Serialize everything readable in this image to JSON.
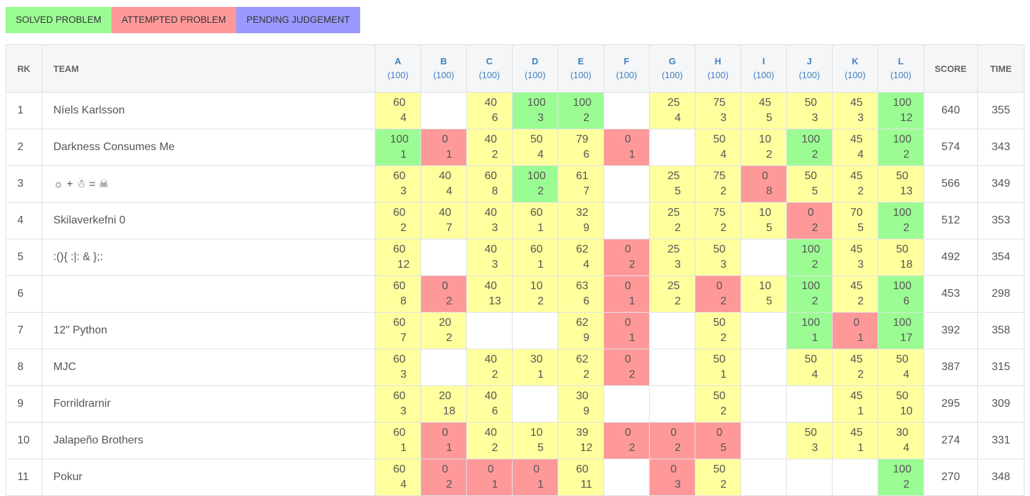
{
  "legend": {
    "solved": "SOLVED PROBLEM",
    "attempted": "ATTEMPTED PROBLEM",
    "pending": "PENDING JUDGEMENT"
  },
  "colors": {
    "solved": "#9cfc94",
    "attempted": "#ff9999",
    "partial": "#ffff9e",
    "pending": "#9999ff",
    "header_bg": "#f5f6f7",
    "problem_link": "#3d7fc0"
  },
  "header": {
    "rank": "RK",
    "team": "TEAM",
    "score": "SCORE",
    "time": "TIME",
    "problems": [
      {
        "letter": "A",
        "points": "(100)"
      },
      {
        "letter": "B",
        "points": "(100)"
      },
      {
        "letter": "C",
        "points": "(100)"
      },
      {
        "letter": "D",
        "points": "(100)"
      },
      {
        "letter": "E",
        "points": "(100)"
      },
      {
        "letter": "F",
        "points": "(100)"
      },
      {
        "letter": "G",
        "points": "(100)"
      },
      {
        "letter": "H",
        "points": "(100)"
      },
      {
        "letter": "I",
        "points": "(100)"
      },
      {
        "letter": "J",
        "points": "(100)"
      },
      {
        "letter": "K",
        "points": "(100)"
      },
      {
        "letter": "L",
        "points": "(100)"
      }
    ]
  },
  "rows": [
    {
      "rank": "1",
      "team": "Níels Karlsson",
      "score": "640",
      "time": "355",
      "cells": [
        {
          "s": "partial",
          "p": "60",
          "t": "4"
        },
        {
          "s": "empty",
          "p": "",
          "t": ""
        },
        {
          "s": "partial",
          "p": "40",
          "t": "6"
        },
        {
          "s": "solved",
          "p": "100",
          "t": "3"
        },
        {
          "s": "solved",
          "p": "100",
          "t": "2"
        },
        {
          "s": "empty",
          "p": "",
          "t": ""
        },
        {
          "s": "partial",
          "p": "25",
          "t": "4"
        },
        {
          "s": "partial",
          "p": "75",
          "t": "3"
        },
        {
          "s": "partial",
          "p": "45",
          "t": "5"
        },
        {
          "s": "partial",
          "p": "50",
          "t": "3"
        },
        {
          "s": "partial",
          "p": "45",
          "t": "3"
        },
        {
          "s": "solved",
          "p": "100",
          "t": "12"
        }
      ]
    },
    {
      "rank": "2",
      "team": "Darkness Consumes Me",
      "score": "574",
      "time": "343",
      "cells": [
        {
          "s": "solved",
          "p": "100",
          "t": "1"
        },
        {
          "s": "attempted",
          "p": "0",
          "t": "1"
        },
        {
          "s": "partial",
          "p": "40",
          "t": "2"
        },
        {
          "s": "partial",
          "p": "50",
          "t": "4"
        },
        {
          "s": "partial",
          "p": "79",
          "t": "6"
        },
        {
          "s": "attempted",
          "p": "0",
          "t": "1"
        },
        {
          "s": "empty",
          "p": "",
          "t": ""
        },
        {
          "s": "partial",
          "p": "50",
          "t": "4"
        },
        {
          "s": "partial",
          "p": "10",
          "t": "2"
        },
        {
          "s": "solved",
          "p": "100",
          "t": "2"
        },
        {
          "s": "partial",
          "p": "45",
          "t": "4"
        },
        {
          "s": "solved",
          "p": "100",
          "t": "2"
        }
      ]
    },
    {
      "rank": "3",
      "team": "☼ + ☃ = ☠",
      "score": "566",
      "time": "349",
      "cells": [
        {
          "s": "partial",
          "p": "60",
          "t": "3"
        },
        {
          "s": "partial",
          "p": "40",
          "t": "4"
        },
        {
          "s": "partial",
          "p": "60",
          "t": "8"
        },
        {
          "s": "solved",
          "p": "100",
          "t": "2"
        },
        {
          "s": "partial",
          "p": "61",
          "t": "7"
        },
        {
          "s": "empty",
          "p": "",
          "t": ""
        },
        {
          "s": "partial",
          "p": "25",
          "t": "5"
        },
        {
          "s": "partial",
          "p": "75",
          "t": "2"
        },
        {
          "s": "attempted",
          "p": "0",
          "t": "8"
        },
        {
          "s": "partial",
          "p": "50",
          "t": "5"
        },
        {
          "s": "partial",
          "p": "45",
          "t": "2"
        },
        {
          "s": "partial",
          "p": "50",
          "t": "13"
        }
      ]
    },
    {
      "rank": "4",
      "team": "Skilaverkefni 0",
      "score": "512",
      "time": "353",
      "cells": [
        {
          "s": "partial",
          "p": "60",
          "t": "2"
        },
        {
          "s": "partial",
          "p": "40",
          "t": "7"
        },
        {
          "s": "partial",
          "p": "40",
          "t": "3"
        },
        {
          "s": "partial",
          "p": "60",
          "t": "1"
        },
        {
          "s": "partial",
          "p": "32",
          "t": "9"
        },
        {
          "s": "empty",
          "p": "",
          "t": ""
        },
        {
          "s": "partial",
          "p": "25",
          "t": "2"
        },
        {
          "s": "partial",
          "p": "75",
          "t": "2"
        },
        {
          "s": "partial",
          "p": "10",
          "t": "5"
        },
        {
          "s": "attempted",
          "p": "0",
          "t": "2"
        },
        {
          "s": "partial",
          "p": "70",
          "t": "5"
        },
        {
          "s": "solved",
          "p": "100",
          "t": "2"
        }
      ]
    },
    {
      "rank": "5",
      "team": ":(){ :|: & };:",
      "score": "492",
      "time": "354",
      "cells": [
        {
          "s": "partial",
          "p": "60",
          "t": "12"
        },
        {
          "s": "empty",
          "p": "",
          "t": ""
        },
        {
          "s": "partial",
          "p": "40",
          "t": "3"
        },
        {
          "s": "partial",
          "p": "60",
          "t": "1"
        },
        {
          "s": "partial",
          "p": "62",
          "t": "4"
        },
        {
          "s": "attempted",
          "p": "0",
          "t": "2"
        },
        {
          "s": "partial",
          "p": "25",
          "t": "3"
        },
        {
          "s": "partial",
          "p": "50",
          "t": "3"
        },
        {
          "s": "empty",
          "p": "",
          "t": ""
        },
        {
          "s": "solved",
          "p": "100",
          "t": "2"
        },
        {
          "s": "partial",
          "p": "45",
          "t": "3"
        },
        {
          "s": "partial",
          "p": "50",
          "t": "18"
        }
      ]
    },
    {
      "rank": "6",
      "team": "",
      "score": "453",
      "time": "298",
      "cells": [
        {
          "s": "partial",
          "p": "60",
          "t": "8"
        },
        {
          "s": "attempted",
          "p": "0",
          "t": "2"
        },
        {
          "s": "partial",
          "p": "40",
          "t": "13"
        },
        {
          "s": "partial",
          "p": "10",
          "t": "2"
        },
        {
          "s": "partial",
          "p": "63",
          "t": "6"
        },
        {
          "s": "attempted",
          "p": "0",
          "t": "1"
        },
        {
          "s": "partial",
          "p": "25",
          "t": "2"
        },
        {
          "s": "attempted",
          "p": "0",
          "t": "2"
        },
        {
          "s": "partial",
          "p": "10",
          "t": "5"
        },
        {
          "s": "solved",
          "p": "100",
          "t": "2"
        },
        {
          "s": "partial",
          "p": "45",
          "t": "2"
        },
        {
          "s": "solved",
          "p": "100",
          "t": "6"
        }
      ]
    },
    {
      "rank": "7",
      "team": "12\" Python",
      "score": "392",
      "time": "358",
      "cells": [
        {
          "s": "partial",
          "p": "60",
          "t": "7"
        },
        {
          "s": "partial",
          "p": "20",
          "t": "2"
        },
        {
          "s": "empty",
          "p": "",
          "t": ""
        },
        {
          "s": "empty",
          "p": "",
          "t": ""
        },
        {
          "s": "partial",
          "p": "62",
          "t": "9"
        },
        {
          "s": "attempted",
          "p": "0",
          "t": "1"
        },
        {
          "s": "empty",
          "p": "",
          "t": ""
        },
        {
          "s": "partial",
          "p": "50",
          "t": "2"
        },
        {
          "s": "empty",
          "p": "",
          "t": ""
        },
        {
          "s": "solved",
          "p": "100",
          "t": "1"
        },
        {
          "s": "attempted",
          "p": "0",
          "t": "1"
        },
        {
          "s": "solved",
          "p": "100",
          "t": "17"
        }
      ]
    },
    {
      "rank": "8",
      "team": "MJC",
      "score": "387",
      "time": "315",
      "cells": [
        {
          "s": "partial",
          "p": "60",
          "t": "3"
        },
        {
          "s": "empty",
          "p": "",
          "t": ""
        },
        {
          "s": "partial",
          "p": "40",
          "t": "2"
        },
        {
          "s": "partial",
          "p": "30",
          "t": "1"
        },
        {
          "s": "partial",
          "p": "62",
          "t": "2"
        },
        {
          "s": "attempted",
          "p": "0",
          "t": "2"
        },
        {
          "s": "empty",
          "p": "",
          "t": ""
        },
        {
          "s": "partial",
          "p": "50",
          "t": "1"
        },
        {
          "s": "empty",
          "p": "",
          "t": ""
        },
        {
          "s": "partial",
          "p": "50",
          "t": "4"
        },
        {
          "s": "partial",
          "p": "45",
          "t": "2"
        },
        {
          "s": "partial",
          "p": "50",
          "t": "4"
        }
      ]
    },
    {
      "rank": "9",
      "team": "Forrildrarnir",
      "score": "295",
      "time": "309",
      "cells": [
        {
          "s": "partial",
          "p": "60",
          "t": "3"
        },
        {
          "s": "partial",
          "p": "20",
          "t": "18"
        },
        {
          "s": "partial",
          "p": "40",
          "t": "6"
        },
        {
          "s": "empty",
          "p": "",
          "t": ""
        },
        {
          "s": "partial",
          "p": "30",
          "t": "9"
        },
        {
          "s": "empty",
          "p": "",
          "t": ""
        },
        {
          "s": "empty",
          "p": "",
          "t": ""
        },
        {
          "s": "partial",
          "p": "50",
          "t": "2"
        },
        {
          "s": "empty",
          "p": "",
          "t": ""
        },
        {
          "s": "empty",
          "p": "",
          "t": ""
        },
        {
          "s": "partial",
          "p": "45",
          "t": "1"
        },
        {
          "s": "partial",
          "p": "50",
          "t": "10"
        }
      ]
    },
    {
      "rank": "10",
      "team": "Jalapeño Brothers",
      "score": "274",
      "time": "331",
      "cells": [
        {
          "s": "partial",
          "p": "60",
          "t": "1"
        },
        {
          "s": "attempted",
          "p": "0",
          "t": "1"
        },
        {
          "s": "partial",
          "p": "40",
          "t": "2"
        },
        {
          "s": "partial",
          "p": "10",
          "t": "5"
        },
        {
          "s": "partial",
          "p": "39",
          "t": "12"
        },
        {
          "s": "attempted",
          "p": "0",
          "t": "2"
        },
        {
          "s": "attempted",
          "p": "0",
          "t": "2"
        },
        {
          "s": "attempted",
          "p": "0",
          "t": "5"
        },
        {
          "s": "empty",
          "p": "",
          "t": ""
        },
        {
          "s": "partial",
          "p": "50",
          "t": "3"
        },
        {
          "s": "partial",
          "p": "45",
          "t": "1"
        },
        {
          "s": "partial",
          "p": "30",
          "t": "4"
        }
      ]
    },
    {
      "rank": "11",
      "team": "Pokur",
      "score": "270",
      "time": "348",
      "cells": [
        {
          "s": "partial",
          "p": "60",
          "t": "4"
        },
        {
          "s": "attempted",
          "p": "0",
          "t": "2"
        },
        {
          "s": "attempted",
          "p": "0",
          "t": "1"
        },
        {
          "s": "attempted",
          "p": "0",
          "t": "1"
        },
        {
          "s": "partial",
          "p": "60",
          "t": "11"
        },
        {
          "s": "empty",
          "p": "",
          "t": ""
        },
        {
          "s": "attempted",
          "p": "0",
          "t": "3"
        },
        {
          "s": "partial",
          "p": "50",
          "t": "2"
        },
        {
          "s": "empty",
          "p": "",
          "t": ""
        },
        {
          "s": "empty",
          "p": "",
          "t": ""
        },
        {
          "s": "empty",
          "p": "",
          "t": ""
        },
        {
          "s": "solved",
          "p": "100",
          "t": "2"
        }
      ]
    }
  ]
}
